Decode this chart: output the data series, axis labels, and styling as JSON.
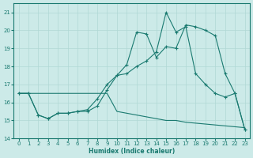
{
  "xlabel": "Humidex (Indice chaleur)",
  "xlim": [
    -0.5,
    23.5
  ],
  "ylim": [
    14,
    21.5
  ],
  "yticks": [
    14,
    15,
    16,
    17,
    18,
    19,
    20,
    21
  ],
  "xticks": [
    0,
    1,
    2,
    3,
    4,
    5,
    6,
    7,
    8,
    9,
    10,
    11,
    12,
    13,
    14,
    15,
    16,
    17,
    18,
    19,
    20,
    21,
    22,
    23
  ],
  "bg_color": "#cceae8",
  "grid_color": "#b0d8d5",
  "line_color": "#1a7a70",
  "line1_x": [
    0,
    1,
    2,
    3,
    4,
    5,
    6,
    7,
    8,
    9,
    10,
    11,
    12,
    13,
    14,
    15,
    16,
    17,
    18,
    19,
    20,
    21,
    22,
    23
  ],
  "line1_y": [
    16.5,
    16.5,
    16.5,
    16.5,
    16.5,
    16.5,
    16.5,
    16.5,
    16.5,
    16.5,
    15.5,
    15.4,
    15.3,
    15.2,
    15.1,
    15.0,
    15.0,
    14.9,
    14.85,
    14.8,
    14.75,
    14.7,
    14.65,
    14.6
  ],
  "line2_x": [
    0,
    1,
    2,
    3,
    4,
    5,
    6,
    7,
    8,
    9,
    10,
    11,
    12,
    13,
    14,
    15,
    16,
    17,
    18,
    19,
    20,
    21,
    22,
    23
  ],
  "line2_y": [
    16.5,
    16.5,
    15.3,
    15.1,
    15.4,
    15.4,
    15.5,
    15.5,
    15.8,
    16.7,
    17.5,
    17.6,
    18.0,
    18.3,
    18.8,
    21.0,
    19.9,
    20.2,
    17.6,
    17.0,
    16.5,
    16.3,
    16.5,
    14.5
  ],
  "line3_x": [
    0,
    1,
    2,
    3,
    4,
    5,
    6,
    7,
    8,
    9,
    10,
    11,
    12,
    13,
    14,
    15,
    16,
    17,
    18,
    19,
    20,
    21,
    22,
    23
  ],
  "line3_y": [
    16.5,
    16.5,
    15.3,
    15.1,
    15.4,
    15.4,
    15.5,
    15.6,
    16.2,
    17.0,
    17.5,
    18.1,
    19.9,
    19.8,
    18.5,
    19.1,
    19.0,
    20.3,
    20.2,
    20.0,
    19.7,
    17.6,
    16.5,
    14.5
  ]
}
